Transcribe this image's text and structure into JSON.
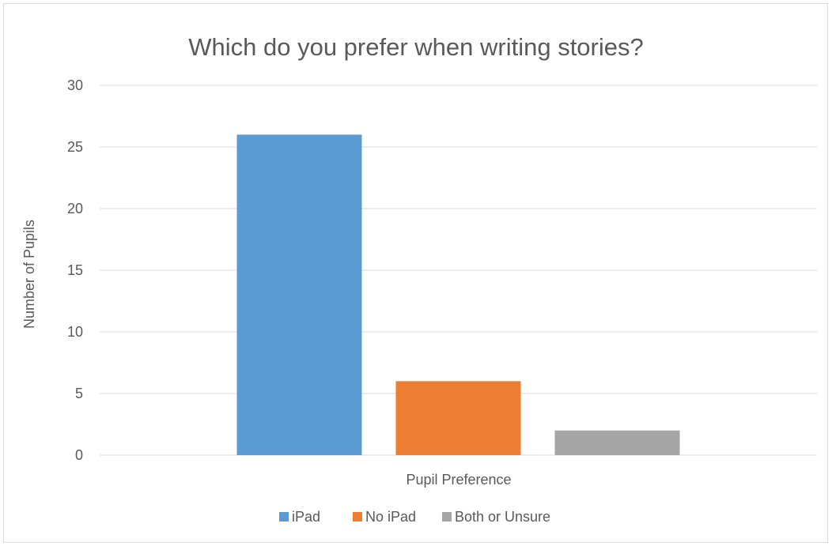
{
  "chart_data": {
    "type": "bar",
    "title": "Which do you prefer when writing stories?",
    "xlabel": "Pupil Preference",
    "ylabel": "Number of Pupils",
    "categories": [
      "Pupil Preference"
    ],
    "series": [
      {
        "name": "iPad",
        "values": [
          26
        ],
        "color": "#5b9bd5"
      },
      {
        "name": "No iPad",
        "values": [
          6
        ],
        "color": "#ed7d31"
      },
      {
        "name": "Both or Unsure",
        "values": [
          2
        ],
        "color": "#a5a5a5"
      }
    ],
    "ylim": [
      0,
      30
    ],
    "yticks": [
      0,
      5,
      10,
      15,
      20,
      25,
      30
    ],
    "grid": true,
    "legend_position": "bottom",
    "colors": {
      "gridline": "#d9d9d9",
      "text": "#595959"
    }
  }
}
